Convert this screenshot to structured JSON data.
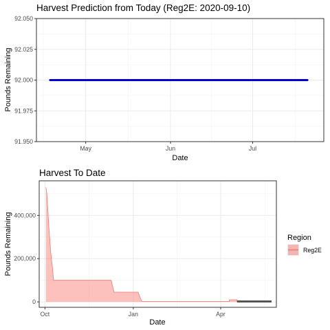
{
  "chart_data": [
    {
      "type": "line",
      "title": "Harvest Prediction from Today (Reg2E: 2020-09-10)",
      "xlabel": "Date",
      "ylabel": "Pounds Remaining",
      "x_tick_labels": [
        "May",
        "Jun",
        "Jul"
      ],
      "x_ticks": [
        "2020-05-01",
        "2020-06-01",
        "2020-07-01"
      ],
      "xlim": [
        "2020-04-13",
        "2020-07-27"
      ],
      "y_tick_labels": [
        "91.950",
        "91.975",
        "92.000",
        "92.025",
        "92.050"
      ],
      "ylim": [
        91.95,
        92.05
      ],
      "grid": true,
      "line_color": "#0000cc",
      "series": [
        {
          "x": [
            "2020-04-18",
            "2020-07-21"
          ],
          "values": [
            92.0,
            92.0
          ]
        }
      ]
    },
    {
      "type": "area",
      "title": "Harvest To Date",
      "xlabel": "Date",
      "ylabel": "Pounds Remaining",
      "x_tick_labels": [
        "Oct",
        "Jan",
        "Apr"
      ],
      "x_ticks": [
        "2019-10-01",
        "2020-01-01",
        "2020-04-01"
      ],
      "xlim": [
        "2019-09-25",
        "2020-05-29"
      ],
      "y_tick_labels": [
        "0",
        "200,000",
        "400,000"
      ],
      "y_ticks": [
        0,
        200000,
        400000
      ],
      "ylim": [
        -25000,
        560000
      ],
      "grid": true,
      "legend_title": "Region",
      "legend_position": "right",
      "fill_color": "#f8766d",
      "dark_line_color": "#555555",
      "series": [
        {
          "name": "Reg2E",
          "x": [
            "2019-10-02",
            "2019-10-03",
            "2019-10-05",
            "2019-10-07",
            "2019-10-09",
            "2019-10-10",
            "2019-12-09",
            "2019-12-10",
            "2019-12-12",
            "2020-01-06",
            "2020-01-08",
            "2020-01-10",
            "2020-04-10",
            "2020-04-10",
            "2020-04-18",
            "2020-04-18"
          ],
          "values": [
            530000,
            500000,
            350000,
            230000,
            150000,
            100000,
            100000,
            80000,
            45000,
            45000,
            20000,
            2000,
            2000,
            10000,
            10000,
            2000
          ]
        }
      ],
      "flat_line": {
        "x": [
          "2020-04-18",
          "2020-05-24"
        ],
        "values": [
          2000,
          2000
        ]
      }
    }
  ]
}
